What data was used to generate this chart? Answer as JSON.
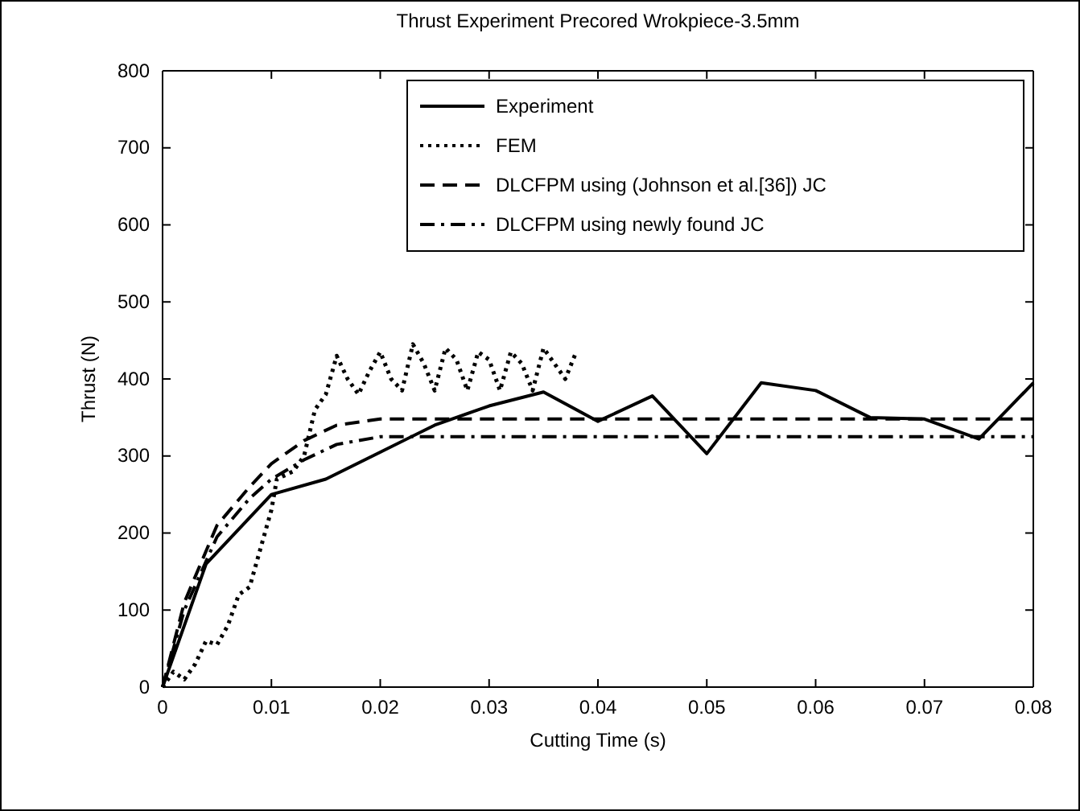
{
  "chart_data": {
    "type": "line",
    "title": "Thrust Experiment Precored Wrokpiece-3.5mm",
    "xlabel": "Cutting Time (s)",
    "ylabel": "Thrust (N)",
    "xlim": [
      0,
      0.08
    ],
    "xticks": [
      0,
      0.01,
      0.02,
      0.03,
      0.04,
      0.05,
      0.06,
      0.07,
      0.08
    ],
    "ylim": [
      0,
      800
    ],
    "yticks": [
      0,
      100,
      200,
      300,
      400,
      500,
      600,
      700,
      800
    ],
    "legend": "top right",
    "grid": false,
    "series": [
      {
        "name": "Experiment",
        "color": "#000000",
        "line_style": "solid",
        "x": [
          0,
          0.004,
          0.01,
          0.015,
          0.02,
          0.025,
          0.03,
          0.035,
          0.04,
          0.045,
          0.05,
          0.055,
          0.06,
          0.065,
          0.07,
          0.075,
          0.08
        ],
        "values": [
          0,
          160,
          250,
          270,
          305,
          340,
          365,
          383,
          345,
          378,
          303,
          395,
          385,
          350,
          348,
          322,
          395
        ]
      },
      {
        "name": "FEM",
        "color": "#000000",
        "line_style": "dotted",
        "x": [
          0,
          0.001,
          0.002,
          0.003,
          0.004,
          0.005,
          0.006,
          0.007,
          0.008,
          0.009,
          0.01,
          0.0105,
          0.012,
          0.013,
          0.014,
          0.015,
          0.016,
          0.017,
          0.018,
          0.019,
          0.02,
          0.021,
          0.022,
          0.023,
          0.024,
          0.025,
          0.026,
          0.027,
          0.028,
          0.029,
          0.03,
          0.031,
          0.032,
          0.033,
          0.034,
          0.035,
          0.036,
          0.037,
          0.038
        ],
        "values": [
          0,
          20,
          10,
          30,
          60,
          55,
          80,
          120,
          130,
          180,
          230,
          270,
          280,
          300,
          360,
          380,
          430,
          400,
          380,
          410,
          435,
          400,
          385,
          445,
          420,
          385,
          440,
          425,
          385,
          435,
          425,
          385,
          435,
          420,
          385,
          440,
          420,
          400,
          435
        ]
      },
      {
        "name": "DLCFPM using (Johnson et al.[36]) JC",
        "color": "#000000",
        "line_style": "dashed",
        "x": [
          0,
          0.002,
          0.005,
          0.008,
          0.01,
          0.013,
          0.016,
          0.02,
          0.08
        ],
        "values": [
          0,
          110,
          210,
          260,
          290,
          320,
          340,
          348,
          348
        ]
      },
      {
        "name": "DLCFPM using newly found JC",
        "color": "#000000",
        "line_style": "dashdot",
        "x": [
          0,
          0.002,
          0.005,
          0.008,
          0.01,
          0.013,
          0.016,
          0.02,
          0.08
        ],
        "values": [
          0,
          100,
          195,
          245,
          270,
          295,
          315,
          325,
          325
        ]
      }
    ]
  }
}
